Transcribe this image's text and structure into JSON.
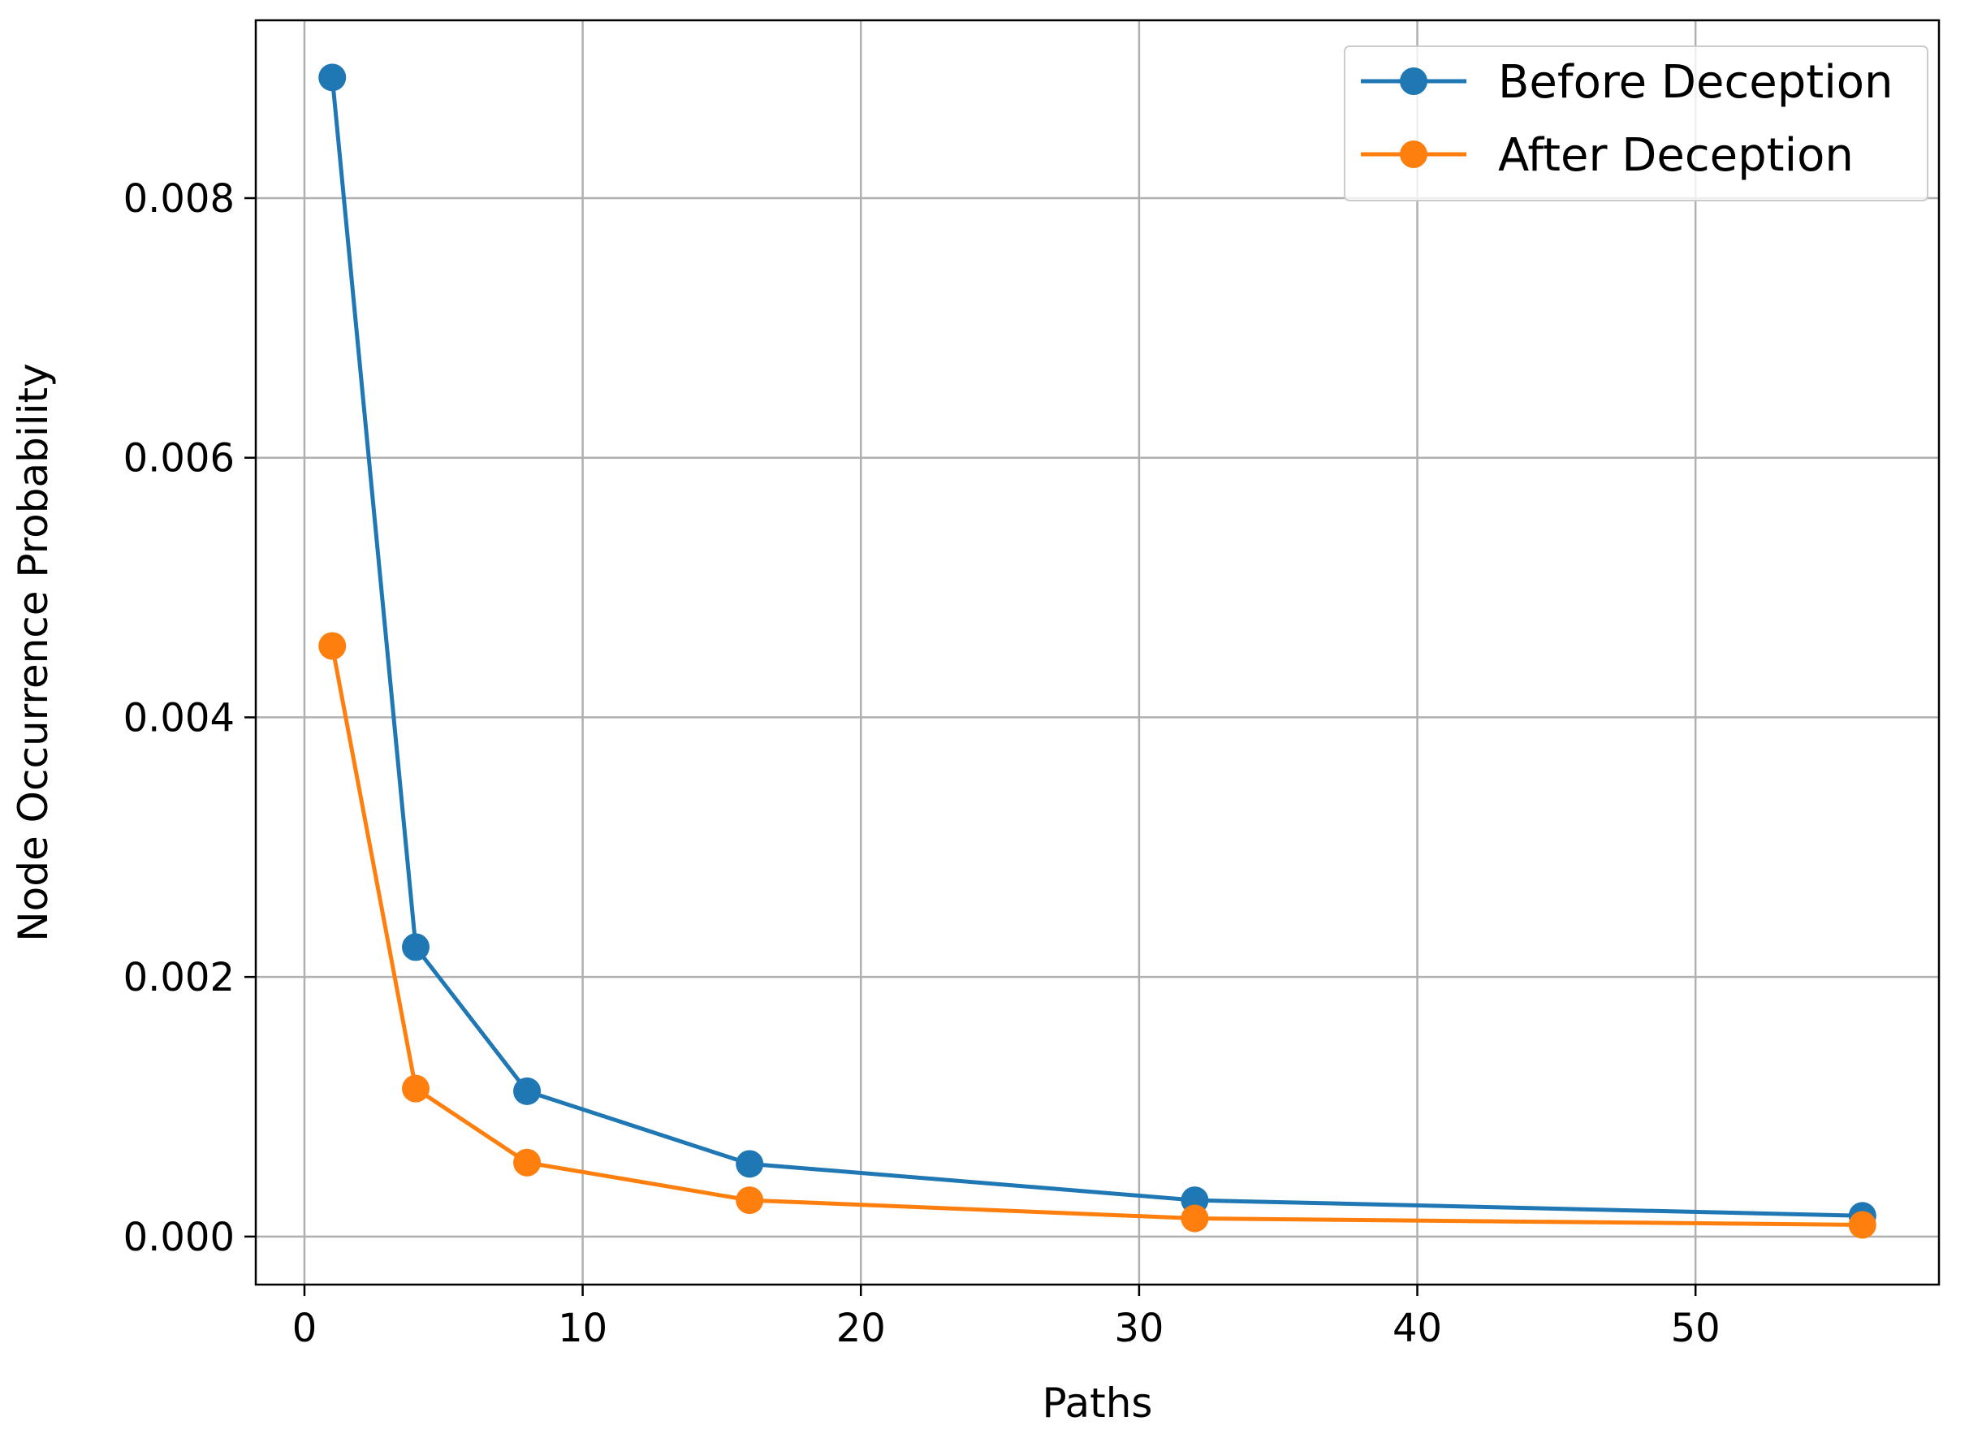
{
  "chart_data": {
    "type": "line",
    "title": "",
    "xlabel": "Paths",
    "ylabel": "Node Occurrence Probability",
    "xlim": [
      -1.75,
      58.75
    ],
    "ylim": [
      -0.00037,
      0.00937
    ],
    "xticks": [
      0,
      10,
      20,
      30,
      40,
      50
    ],
    "xtick_labels": [
      "0",
      "10",
      "20",
      "30",
      "40",
      "50"
    ],
    "yticks": [
      0.0,
      0.002,
      0.004,
      0.006,
      0.008
    ],
    "ytick_labels": [
      "0.000",
      "0.002",
      "0.004",
      "0.006",
      "0.008"
    ],
    "grid": true,
    "legend_position": "top-right",
    "series": [
      {
        "name": "Before Deception",
        "color": "#1f77b4",
        "x": [
          1,
          4,
          8,
          16,
          32,
          56
        ],
        "y": [
          0.00893,
          0.00223,
          0.00112,
          0.00056,
          0.00028,
          0.00016
        ]
      },
      {
        "name": "After Deception",
        "color": "#ff7f0e",
        "x": [
          1,
          4,
          8,
          16,
          32,
          56
        ],
        "y": [
          0.00455,
          0.00114,
          0.00057,
          0.00028,
          0.00014,
          9e-05
        ]
      }
    ]
  }
}
